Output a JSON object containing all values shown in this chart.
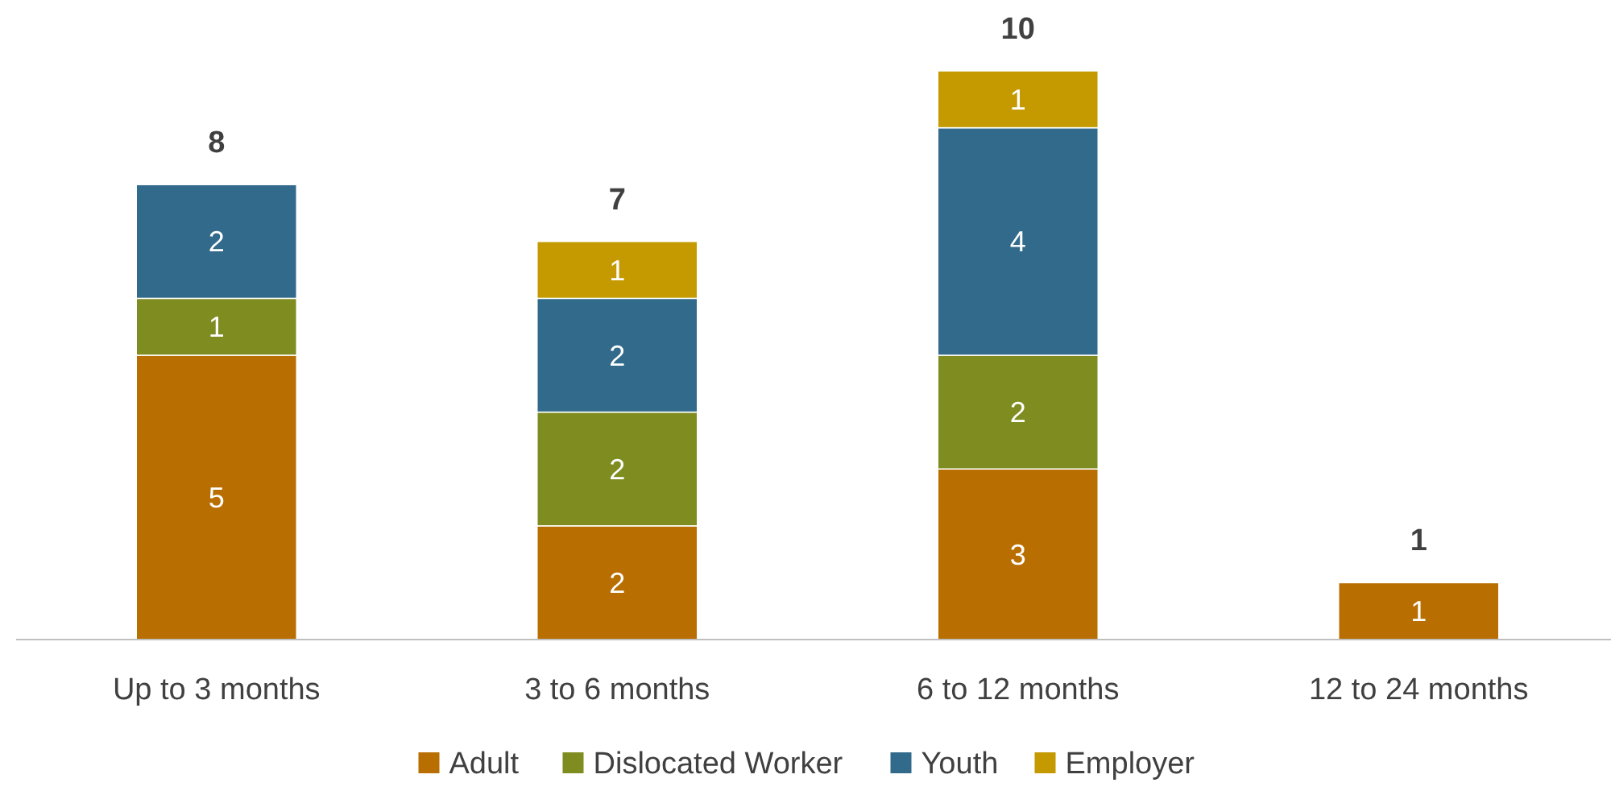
{
  "chart_data": {
    "type": "bar",
    "stacked": true,
    "categories": [
      "Up to 3 months",
      "3 to 6 months",
      "6 to 12 months",
      "12 to 24 months"
    ],
    "series": [
      {
        "name": "Adult",
        "color": "#b86e00",
        "values": [
          5,
          2,
          3,
          1
        ]
      },
      {
        "name": "Dislocated Worker",
        "color": "#7f8c1f",
        "values": [
          1,
          2,
          2,
          null
        ]
      },
      {
        "name": "Youth",
        "color": "#316a8a",
        "values": [
          2,
          2,
          4,
          null
        ]
      },
      {
        "name": "Employer",
        "color": "#c49a00",
        "values": [
          null,
          1,
          1,
          null
        ]
      }
    ],
    "data_labels": true,
    "totals": [
      "8",
      "7",
      "10",
      "1"
    ],
    "legend": "bottom"
  }
}
